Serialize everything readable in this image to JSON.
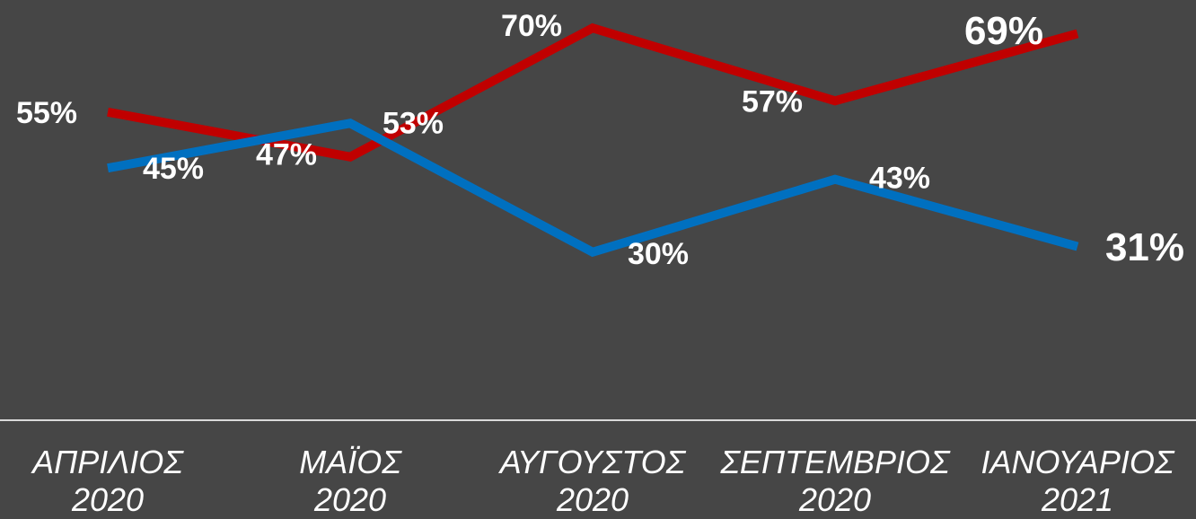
{
  "chart_data": {
    "type": "line",
    "categories": [
      "ΑΠΡΙΛΙΟΣ\n2020",
      "ΜΑΪΟΣ\n2020",
      "ΑΥΓΟΥΣΤΟΣ\n2020",
      "ΣΕΠΤΕΜΒΡΙΟΣ\n2020",
      "ΙΑΝΟΥΑΡΙΟΣ\n2021"
    ],
    "series": [
      {
        "color": "#c00000",
        "values": [
          55,
          47,
          70,
          57,
          69
        ],
        "value_labels": [
          "55%",
          "47%",
          "70%",
          "57%",
          "69%"
        ]
      },
      {
        "color": "#0070c0",
        "values": [
          45,
          53,
          30,
          43,
          31
        ],
        "value_labels": [
          "45%",
          "53%",
          "30%",
          "43%",
          "31%"
        ]
      }
    ],
    "ylim": [
      0,
      75
    ]
  }
}
